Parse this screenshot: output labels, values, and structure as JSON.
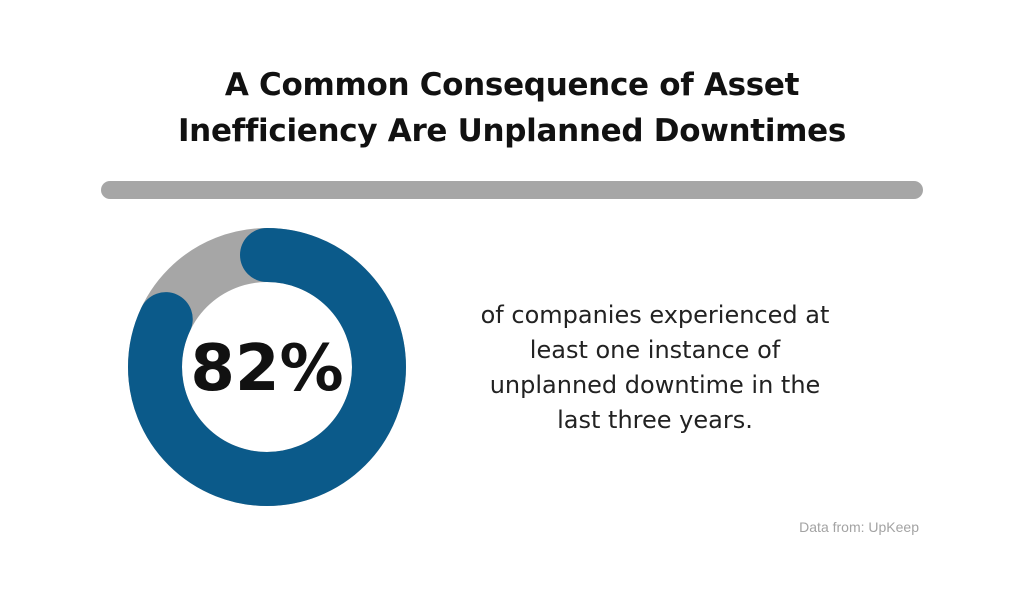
{
  "title": {
    "line1": "A Common Consequence of Asset",
    "line2": "Inefficiency Are Unplanned Downtimes"
  },
  "chart_data": {
    "type": "pie",
    "variant": "donut",
    "categories": [
      "experienced unplanned downtime",
      "remainder"
    ],
    "values": [
      82,
      18
    ],
    "center_label": "82%",
    "colors": [
      "#0b5a8a",
      "#a6a6a6"
    ]
  },
  "description": {
    "line1": "of companies experienced at",
    "line2": "least one instance of",
    "line3": "unplanned downtime in the",
    "line4": "last three years."
  },
  "source": "Data from: UpKeep",
  "colors": {
    "divider": "#a6a6a6",
    "text": "#111111",
    "muted": "#a3a3a3"
  }
}
